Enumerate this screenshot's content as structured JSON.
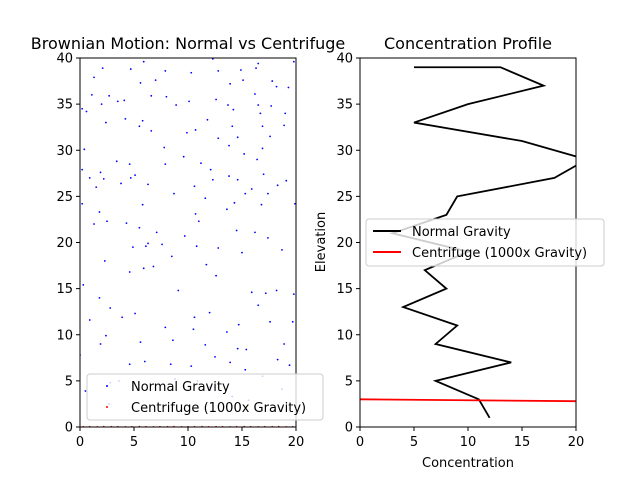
{
  "chart_data": [
    {
      "type": "scatter",
      "title": "Brownian Motion: Normal vs Centrifuge",
      "xlabel": "",
      "ylabel": "",
      "xlim": [
        0,
        20
      ],
      "ylim": [
        0,
        40
      ],
      "xticks": [
        "0",
        "5",
        "10",
        "15",
        "20"
      ],
      "yticks": [
        "0",
        "5",
        "10",
        "15",
        "20",
        "25",
        "30",
        "35",
        "40"
      ],
      "grid": false,
      "legend": "lower-center",
      "series": [
        {
          "name": "Normal Gravity",
          "color": "#0000ff",
          "points": [
            [
              5.9,
              39.6
            ],
            [
              12.3,
              39.9
            ],
            [
              16.5,
              39.4
            ],
            [
              19.8,
              39.6
            ],
            [
              16.3,
              38.9
            ],
            [
              2.1,
              38.9
            ],
            [
              4.7,
              38.8
            ],
            [
              7.9,
              38.6
            ],
            [
              10.3,
              38.4
            ],
            [
              12.8,
              38.6
            ],
            [
              14.9,
              38.7
            ],
            [
              1.3,
              37.9
            ],
            [
              17.8,
              37.5
            ],
            [
              5.6,
              37.3
            ],
            [
              7.0,
              37.6
            ],
            [
              13.9,
              37.2
            ],
            [
              15.1,
              37.6
            ],
            [
              18.2,
              36.9
            ],
            [
              19.3,
              36.8
            ],
            [
              1.1,
              36.0
            ],
            [
              2.7,
              35.9
            ],
            [
              6.6,
              35.9
            ],
            [
              8.0,
              35.8
            ],
            [
              16.2,
              36.1
            ],
            [
              2.0,
              35.0
            ],
            [
              3.5,
              35.3
            ],
            [
              4.1,
              35.4
            ],
            [
              10.1,
              35.3
            ],
            [
              13.7,
              34.9
            ],
            [
              8.9,
              34.9
            ],
            [
              12.6,
              35.5
            ],
            [
              14.2,
              34.4
            ],
            [
              16.5,
              34.9
            ],
            [
              17.7,
              34.8
            ],
            [
              0.2,
              34.5
            ],
            [
              0.6,
              34.2
            ],
            [
              16.7,
              34.0
            ],
            [
              19.0,
              34.0
            ],
            [
              4.2,
              33.4
            ],
            [
              5.8,
              33.2
            ],
            [
              11.8,
              33.3
            ],
            [
              2.4,
              33.0
            ],
            [
              5.5,
              32.6
            ],
            [
              6.6,
              32.1
            ],
            [
              10.7,
              32.2
            ],
            [
              14.1,
              32.6
            ],
            [
              16.9,
              32.6
            ],
            [
              18.9,
              32.7
            ],
            [
              9.9,
              31.9
            ],
            [
              14.6,
              31.4
            ],
            [
              17.6,
              31.5
            ],
            [
              12.8,
              31.3
            ],
            [
              0.4,
              30.1
            ],
            [
              7.8,
              30.3
            ],
            [
              13.8,
              30.5
            ],
            [
              16.9,
              30.2
            ],
            [
              15.2,
              29.6
            ],
            [
              9.6,
              29.3
            ],
            [
              16.4,
              29.0
            ],
            [
              3.4,
              28.8
            ],
            [
              4.6,
              28.5
            ],
            [
              7.9,
              28.5
            ],
            [
              11.2,
              28.6
            ],
            [
              12.1,
              27.9
            ],
            [
              17.0,
              27.4
            ],
            [
              0.2,
              27.9
            ],
            [
              1.9,
              27.6
            ],
            [
              5.1,
              27.3
            ],
            [
              13.8,
              27.2
            ],
            [
              12.3,
              26.8
            ],
            [
              14.6,
              26.8
            ],
            [
              18.3,
              26.2
            ],
            [
              19.1,
              26.7
            ],
            [
              0.9,
              27.0
            ],
            [
              1.5,
              26.0
            ],
            [
              3.8,
              26.4
            ],
            [
              6.3,
              26.3
            ],
            [
              10.6,
              26.1
            ],
            [
              15.9,
              25.8
            ],
            [
              2.2,
              26.9
            ],
            [
              4.7,
              27.0
            ],
            [
              15.3,
              25.3
            ],
            [
              17.4,
              25.3
            ],
            [
              8.7,
              25.3
            ],
            [
              11.6,
              24.8
            ],
            [
              0.2,
              24.2
            ],
            [
              1.8,
              23.3
            ],
            [
              5.8,
              24.1
            ],
            [
              10.7,
              23.1
            ],
            [
              13.6,
              23.6
            ],
            [
              14.3,
              24.3
            ],
            [
              16.8,
              24.1
            ],
            [
              19.9,
              24.2
            ],
            [
              2.5,
              22.3
            ],
            [
              4.3,
              22.1
            ],
            [
              5.5,
              21.6
            ],
            [
              11.0,
              22.3
            ],
            [
              7.1,
              21.1
            ],
            [
              1.3,
              22.0
            ],
            [
              9.7,
              20.7
            ],
            [
              14.5,
              21.3
            ],
            [
              16.2,
              21.1
            ],
            [
              17.4,
              20.5
            ],
            [
              4.9,
              19.5
            ],
            [
              6.1,
              19.6
            ],
            [
              6.3,
              19.9
            ],
            [
              7.6,
              19.8
            ],
            [
              10.8,
              19.6
            ],
            [
              12.8,
              19.4
            ],
            [
              15.0,
              18.9
            ],
            [
              18.7,
              19.2
            ],
            [
              8.5,
              18.5
            ],
            [
              2.3,
              18.0
            ],
            [
              6.8,
              17.4
            ],
            [
              11.7,
              17.6
            ],
            [
              5.9,
              17.2
            ],
            [
              4.6,
              16.8
            ],
            [
              0.3,
              15.4
            ],
            [
              9.1,
              14.8
            ],
            [
              15.9,
              14.6
            ],
            [
              17.2,
              14.5
            ],
            [
              12.6,
              16.4
            ],
            [
              18.2,
              14.8
            ],
            [
              19.8,
              14.4
            ],
            [
              1.8,
              14.0
            ],
            [
              16.5,
              13.2
            ],
            [
              2.8,
              12.9
            ],
            [
              5.1,
              12.3
            ],
            [
              12.0,
              12.4
            ],
            [
              10.6,
              11.9
            ],
            [
              3.9,
              11.9
            ],
            [
              0.9,
              11.6
            ],
            [
              17.6,
              11.4
            ],
            [
              14.7,
              11.1
            ],
            [
              19.7,
              11.4
            ],
            [
              7.9,
              10.8
            ],
            [
              10.5,
              10.6
            ],
            [
              13.6,
              10.3
            ],
            [
              2.4,
              9.9
            ],
            [
              1.9,
              9.0
            ],
            [
              5.6,
              9.2
            ],
            [
              8.6,
              9.4
            ],
            [
              18.9,
              9.0
            ],
            [
              11.6,
              8.9
            ],
            [
              14.6,
              8.5
            ],
            [
              15.4,
              8.4
            ],
            [
              0.0,
              7.8
            ],
            [
              12.5,
              7.6
            ],
            [
              4.6,
              6.8
            ],
            [
              6.0,
              7.1
            ],
            [
              8.4,
              6.8
            ],
            [
              10.3,
              6.6
            ],
            [
              13.9,
              7.0
            ],
            [
              18.3,
              7.3
            ],
            [
              19.4,
              6.7
            ],
            [
              15.3,
              6.2
            ],
            [
              16.9,
              5.5
            ],
            [
              8.8,
              5.2
            ],
            [
              10.9,
              5.0
            ],
            [
              3.6,
              5.0
            ],
            [
              12.0,
              4.3
            ],
            [
              18.7,
              4.1
            ],
            [
              2.8,
              4.8
            ],
            [
              14.1,
              3.3
            ],
            [
              15.6,
              2.9
            ],
            [
              2.7,
              2.5
            ],
            [
              0.5,
              3.9
            ]
          ]
        },
        {
          "name": "Centrifuge (1000x Gravity)",
          "color": "#ff0000",
          "points": [
            [
              0.3,
              0.02
            ],
            [
              0.9,
              0.03
            ],
            [
              1.6,
              0.01
            ],
            [
              2.2,
              0.04
            ],
            [
              2.9,
              0.02
            ],
            [
              3.5,
              0.03
            ],
            [
              4.2,
              0.01
            ],
            [
              4.8,
              0.02
            ],
            [
              5.5,
              0.04
            ],
            [
              6.1,
              0.02
            ],
            [
              6.8,
              0.01
            ],
            [
              7.4,
              0.03
            ],
            [
              8.1,
              0.02
            ],
            [
              8.7,
              0.04
            ],
            [
              9.4,
              0.01
            ],
            [
              10.0,
              0.03
            ],
            [
              10.6,
              0.02
            ],
            [
              11.3,
              0.04
            ],
            [
              11.9,
              0.01
            ],
            [
              12.6,
              0.02
            ],
            [
              13.2,
              0.03
            ],
            [
              13.9,
              0.01
            ],
            [
              14.5,
              0.02
            ],
            [
              15.2,
              0.04
            ],
            [
              15.8,
              0.02
            ],
            [
              16.5,
              0.01
            ],
            [
              17.1,
              0.03
            ],
            [
              17.8,
              0.02
            ],
            [
              18.4,
              0.04
            ],
            [
              19.1,
              0.01
            ],
            [
              19.7,
              0.02
            ]
          ]
        }
      ]
    },
    {
      "type": "line",
      "title": "Concentration Profile",
      "xlabel": "Concentration",
      "ylabel": "Elevation",
      "xlim": [
        0,
        20
      ],
      "ylim": [
        0,
        40
      ],
      "xticks": [
        "0",
        "5",
        "10",
        "15",
        "20"
      ],
      "yticks": [
        "0",
        "5",
        "10",
        "15",
        "20",
        "25",
        "30",
        "35",
        "40"
      ],
      "grid": false,
      "legend": "center",
      "series": [
        {
          "name": "Normal Gravity",
          "color": "#000000",
          "x": [
            12,
            11,
            7,
            14,
            7,
            9,
            4,
            8,
            6,
            10,
            3,
            8,
            9,
            18,
            21,
            15,
            5,
            10,
            17,
            13,
            5
          ],
          "y": [
            1,
            3,
            5,
            7,
            9,
            11,
            13,
            15,
            17,
            19,
            21,
            23,
            25,
            27,
            29,
            31,
            33,
            35,
            37,
            39,
            39
          ]
        },
        {
          "name": "Centrifuge (1000x Gravity)",
          "color": "#ff0000",
          "x": [
            0,
            20
          ],
          "y": [
            3.0,
            2.8
          ]
        }
      ]
    }
  ]
}
